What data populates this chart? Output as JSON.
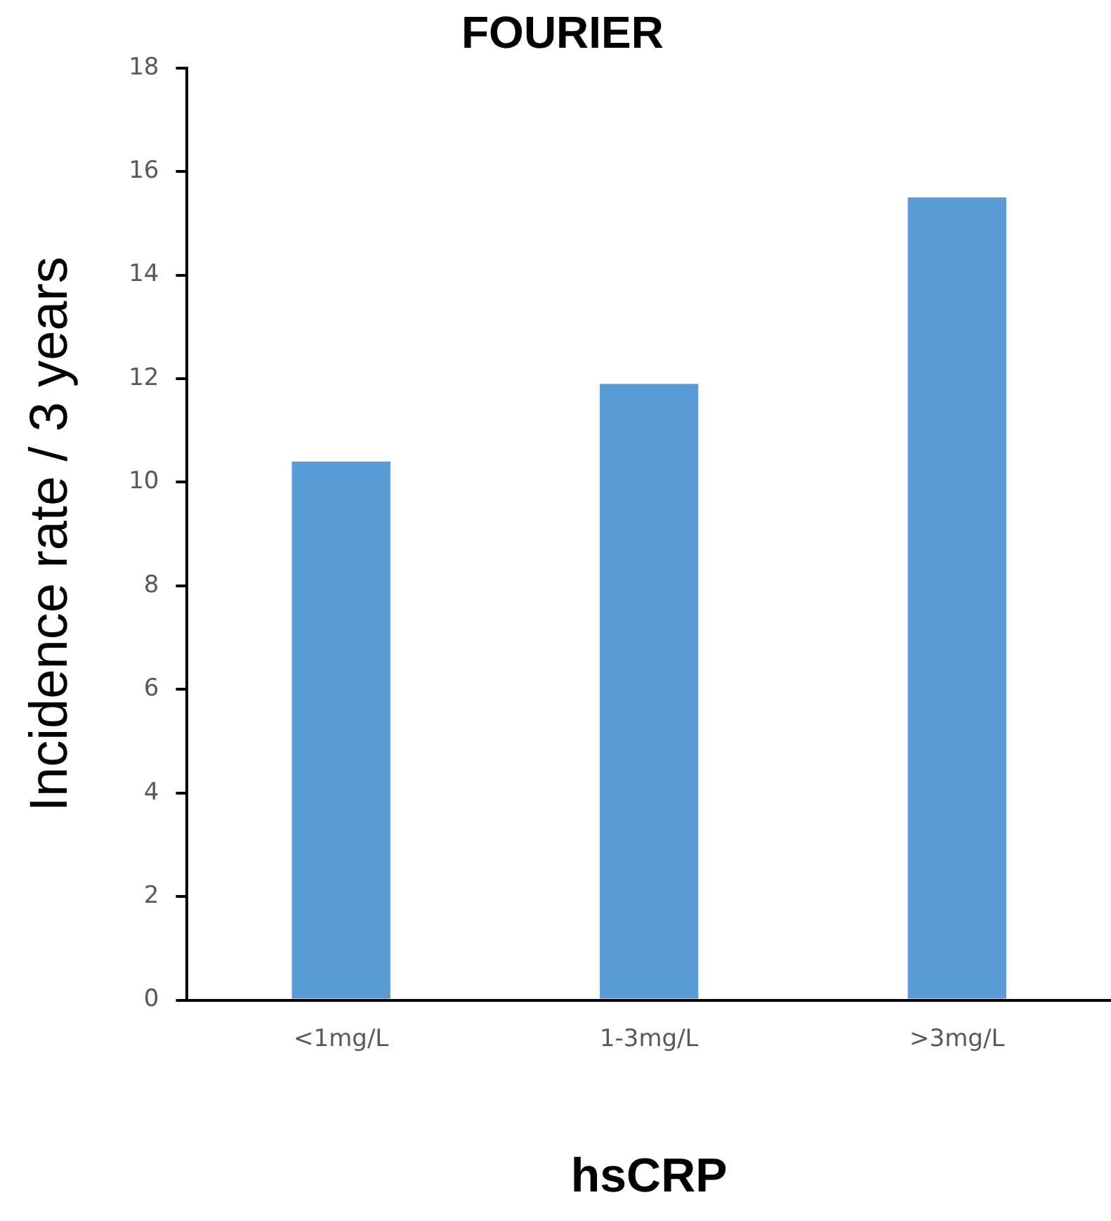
{
  "chart_data": {
    "type": "bar",
    "title": "FOURIER",
    "xlabel": "hsCRP",
    "ylabel": "Incidence rate / 3 years",
    "categories": [
      "<1mg/L",
      "1-3mg/L",
      ">3mg/L"
    ],
    "values": [
      10.4,
      11.9,
      15.5
    ],
    "color": "#5b9bd5",
    "ylim": [
      0,
      18
    ],
    "yticks": [
      0,
      2,
      4,
      6,
      8,
      10,
      12,
      14,
      16,
      18
    ],
    "grid": false,
    "legend": false
  }
}
